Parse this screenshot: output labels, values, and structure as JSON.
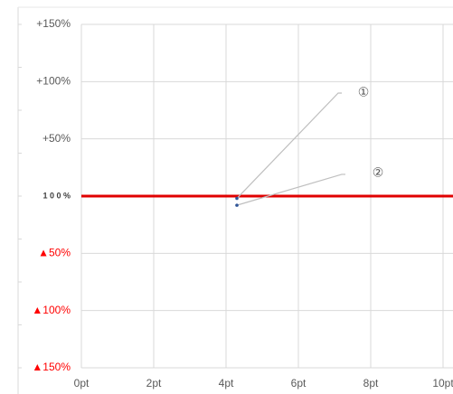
{
  "chart_data": {
    "type": "scatter",
    "series": [
      {
        "color": "#2f5597",
        "x": [
          4.3,
          4.3
        ],
        "values": [
          -2,
          -8
        ]
      }
    ],
    "annotations": [
      {
        "text": "①",
        "x": 7.8,
        "y": 90,
        "line_end": [
          7.1,
          90
        ]
      },
      {
        "text": "②",
        "x": 8.2,
        "y": 20,
        "line_end": [
          7.2,
          19
        ]
      }
    ],
    "annotation_line_color": "#bfbfbf",
    "reference_line": {
      "y": 0,
      "color": "#e00000"
    },
    "xlim": [
      0,
      10
    ],
    "xticks": [
      {
        "value": 0,
        "label": "0pt"
      },
      {
        "value": 2,
        "label": "2pt"
      },
      {
        "value": 4,
        "label": "4pt"
      },
      {
        "value": 6,
        "label": "6pt"
      },
      {
        "value": 8,
        "label": "8pt"
      },
      {
        "value": 10,
        "label": "10pt"
      }
    ],
    "ylim": [
      -150,
      150
    ],
    "yticks": [
      {
        "value": 150,
        "label": "+150%",
        "color": "#595959"
      },
      {
        "value": 100,
        "label": "+100%",
        "color": "#595959"
      },
      {
        "value": 50,
        "label": "+50%",
        "color": "#595959"
      },
      {
        "value": 0,
        "label": "1 0 0 %",
        "color": "#404040"
      },
      {
        "value": -50,
        "label": "▲50%",
        "color": "#ff0000"
      },
      {
        "value": -100,
        "label": "▲100%",
        "color": "#ff0000"
      },
      {
        "value": -150,
        "label": "▲150%",
        "color": "#ff0000"
      }
    ],
    "grid": true
  }
}
